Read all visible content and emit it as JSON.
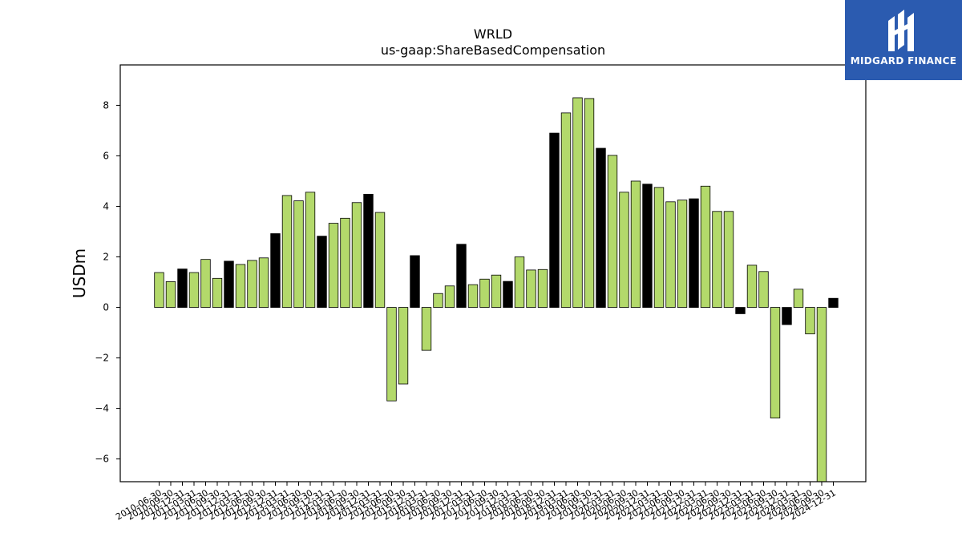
{
  "brand": {
    "name": "MIDGARD FINANCE",
    "logo_icon": "midgard-logo-icon",
    "bg_color": "#2b5bb0"
  },
  "chart_data": {
    "type": "bar",
    "title": "WRLD",
    "subtitle": "us-gaap:ShareBasedCompensation",
    "xlabel": "",
    "ylabel": "USDm",
    "ylim": [
      -6.9,
      9.6
    ],
    "yticks": [
      -6,
      -4,
      -2,
      0,
      2,
      4,
      6,
      8
    ],
    "ytick_labels": [
      "−6",
      "−4",
      "−2",
      "0",
      "2",
      "4",
      "6",
      "8"
    ],
    "grid": false,
    "colors": {
      "quarter": "#b3d96b",
      "fiscal_year_end": "#000000",
      "edge": "#000000"
    },
    "categories": [
      "2010-06-30",
      "2010-09-30",
      "2010-12-31",
      "2011-03-31",
      "2011-06-30",
      "2011-09-30",
      "2011-12-31",
      "2012-03-31",
      "2012-06-30",
      "2012-09-30",
      "2012-12-31",
      "2013-03-31",
      "2013-06-30",
      "2013-09-30",
      "2013-12-31",
      "2014-03-31",
      "2014-06-30",
      "2014-09-30",
      "2014-12-31",
      "2015-03-31",
      "2015-06-30",
      "2015-09-30",
      "2015-12-31",
      "2016-03-31",
      "2016-06-30",
      "2016-09-30",
      "2016-12-31",
      "2017-03-31",
      "2017-06-30",
      "2017-09-30",
      "2017-12-31",
      "2018-03-31",
      "2018-06-30",
      "2018-09-30",
      "2018-12-31",
      "2019-03-31",
      "2019-06-30",
      "2019-09-30",
      "2019-12-31",
      "2020-03-31",
      "2020-06-30",
      "2020-09-30",
      "2020-12-31",
      "2021-03-31",
      "2021-06-30",
      "2021-09-30",
      "2021-12-31",
      "2022-03-31",
      "2022-06-30",
      "2022-09-30",
      "2022-12-31",
      "2023-03-31",
      "2023-06-30",
      "2023-09-30",
      "2023-12-31",
      "2024-03-31",
      "2024-06-30",
      "2024-09-30",
      "2024-12-31"
    ],
    "values": [
      1.38,
      1.02,
      1.52,
      1.38,
      1.9,
      1.15,
      1.83,
      1.7,
      1.86,
      1.96,
      2.92,
      4.43,
      4.22,
      4.56,
      2.82,
      3.33,
      3.53,
      4.15,
      4.48,
      3.76,
      -3.7,
      -3.03,
      2.05,
      -1.7,
      0.55,
      0.85,
      2.5,
      0.9,
      1.12,
      1.28,
      1.03,
      2.0,
      1.48,
      1.5,
      6.9,
      7.7,
      8.3,
      8.27,
      6.3,
      6.02,
      4.56,
      5.0,
      4.88,
      4.75,
      4.18,
      4.25,
      4.3,
      4.8,
      3.8,
      3.8,
      -0.25,
      1.67,
      1.42,
      -4.38,
      -0.68,
      0.72,
      -1.05,
      -6.9,
      0.36
    ],
    "fiscal_year_end_flags": [
      false,
      false,
      true,
      false,
      false,
      false,
      true,
      false,
      false,
      false,
      true,
      false,
      false,
      false,
      true,
      false,
      false,
      false,
      true,
      false,
      false,
      false,
      true,
      false,
      false,
      false,
      true,
      false,
      false,
      false,
      true,
      false,
      false,
      false,
      true,
      false,
      false,
      false,
      true,
      false,
      false,
      false,
      true,
      false,
      false,
      false,
      true,
      false,
      false,
      false,
      true,
      false,
      false,
      false,
      true,
      false,
      false,
      false,
      true
    ]
  }
}
